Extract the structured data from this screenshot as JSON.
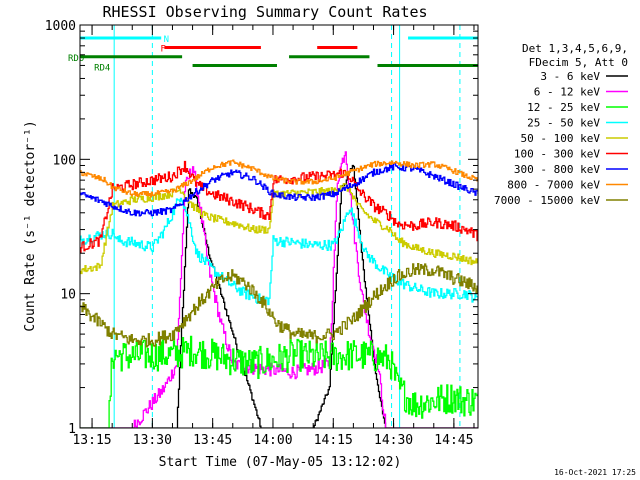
{
  "chart_data": {
    "type": "line",
    "title": "RHESSI Observing Summary Count Rates",
    "xlabel": "Start Time (07-May-05 13:12:02)",
    "ylabel": "Count Rate (s⁻¹ detector⁻¹)",
    "y_scale": "log",
    "ylim": [
      1,
      1000
    ],
    "xlim_minutes": [
      -3.0,
      96.0
    ],
    "x_ticks": [
      {
        "label": "13:15",
        "value": 0
      },
      {
        "label": "13:30",
        "value": 15
      },
      {
        "label": "13:45",
        "value": 30
      },
      {
        "label": "14:00",
        "value": 45
      },
      {
        "label": "14:15",
        "value": 60
      },
      {
        "label": "14:30",
        "value": 75
      },
      {
        "label": "14:45",
        "value": 90
      }
    ],
    "y_ticks": [
      {
        "label": "1",
        "value": 1
      },
      {
        "label": "10",
        "value": 10
      },
      {
        "label": "100",
        "value": 100
      },
      {
        "label": "1000",
        "value": 1000
      }
    ],
    "legend": {
      "placement": "right",
      "header": [
        "Det 1,3,4,5,6,9,",
        "FDecim 5, Att 0"
      ]
    },
    "footer_date": "16-Oct-2021 17:25",
    "flags": [
      {
        "label": "N",
        "color": "#00ffff",
        "segments": [
          [
            -3,
            17.2
          ],
          [
            78.6,
            96
          ]
        ],
        "level": 800
      },
      {
        "label": "F",
        "color": "#ff0000",
        "segments": [
          [
            18.0,
            42.0
          ],
          [
            56.0,
            66.0
          ]
        ],
        "level": 680
      },
      {
        "label": "RD0",
        "color": "#008000",
        "segments": [
          [
            -3,
            22.4
          ],
          [
            49.0,
            69.0
          ]
        ],
        "level": 580
      },
      {
        "label": "RD4",
        "color": "#008000",
        "segments": [
          [
            25.0,
            46.0
          ],
          [
            71.0,
            96.0
          ]
        ],
        "level": 500
      }
    ],
    "vlines": [
      {
        "x": 15.0,
        "color": "#00ffff",
        "style": "dashed"
      },
      {
        "x": 74.5,
        "color": "#00ffff",
        "style": "dashed"
      },
      {
        "x": 91.5,
        "color": "#00ffff",
        "style": "dashed"
      },
      {
        "x": 5.5,
        "color": "#00ffff",
        "style": "solid"
      },
      {
        "x": 76.5,
        "color": "#00ffff",
        "style": "solid"
      }
    ],
    "series": [
      {
        "name": "3 - 6 keV",
        "color": "#000000",
        "noise": 0.02,
        "points": [
          [
            -3,
            1
          ],
          [
            15,
            1
          ],
          [
            21,
            1
          ],
          [
            24,
            60
          ],
          [
            26,
            50
          ],
          [
            29,
            20
          ],
          [
            33,
            8
          ],
          [
            36,
            4
          ],
          [
            40,
            1.6
          ],
          [
            42,
            1
          ],
          [
            50,
            1
          ],
          [
            55,
            1
          ],
          [
            59,
            2
          ],
          [
            62,
            60
          ],
          [
            65,
            90
          ],
          [
            67,
            20
          ],
          [
            69,
            6
          ],
          [
            71,
            2
          ],
          [
            73,
            1
          ],
          [
            96,
            1
          ]
        ]
      },
      {
        "name": "6 - 12 keV",
        "color": "#ff00ff",
        "noise": 0.05,
        "points": [
          [
            -3,
            1
          ],
          [
            10,
            1
          ],
          [
            18,
            2
          ],
          [
            21,
            3
          ],
          [
            23,
            60
          ],
          [
            25,
            90
          ],
          [
            27,
            40
          ],
          [
            29,
            15
          ],
          [
            32,
            6
          ],
          [
            35,
            3
          ],
          [
            40,
            2.8
          ],
          [
            50,
            2.6
          ],
          [
            56,
            2.8
          ],
          [
            59,
            3
          ],
          [
            61,
            70
          ],
          [
            63,
            120
          ],
          [
            65,
            30
          ],
          [
            67,
            10
          ],
          [
            69,
            5
          ],
          [
            71,
            3
          ],
          [
            73,
            1
          ],
          [
            96,
            1
          ]
        ]
      },
      {
        "name": "12 - 25 keV",
        "color": "#00ff00",
        "noise": 0.12,
        "points": [
          [
            -3,
            1
          ],
          [
            4,
            1
          ],
          [
            5,
            3.5
          ],
          [
            10,
            3.4
          ],
          [
            15,
            3.5
          ],
          [
            20,
            3.5
          ],
          [
            25,
            3.8
          ],
          [
            30,
            3.5
          ],
          [
            35,
            3.2
          ],
          [
            40,
            3.0
          ],
          [
            45,
            3.2
          ],
          [
            50,
            3.5
          ],
          [
            55,
            3.4
          ],
          [
            60,
            3.4
          ],
          [
            65,
            3.5
          ],
          [
            70,
            3.4
          ],
          [
            74,
            3.2
          ],
          [
            76,
            2.0
          ],
          [
            80,
            1.5
          ],
          [
            85,
            1.6
          ],
          [
            90,
            1.7
          ],
          [
            92,
            1.6
          ],
          [
            96,
            1.6
          ]
        ]
      },
      {
        "name": "25 - 50 keV",
        "color": "#00ffff",
        "noise": 0.04,
        "points": [
          [
            -3,
            25
          ],
          [
            3,
            28
          ],
          [
            5.5,
            28
          ],
          [
            6,
            25
          ],
          [
            10,
            24
          ],
          [
            15,
            22
          ],
          [
            18,
            30
          ],
          [
            20,
            40
          ],
          [
            22,
            55
          ],
          [
            24,
            35
          ],
          [
            26,
            20
          ],
          [
            30,
            15
          ],
          [
            34,
            12
          ],
          [
            38,
            10
          ],
          [
            42,
            9
          ],
          [
            44,
            9
          ],
          [
            45,
            25
          ],
          [
            50,
            24
          ],
          [
            55,
            23
          ],
          [
            60,
            23
          ],
          [
            62,
            30
          ],
          [
            64,
            45
          ],
          [
            66,
            30
          ],
          [
            68,
            20
          ],
          [
            72,
            15
          ],
          [
            75,
            13
          ],
          [
            77,
            12
          ],
          [
            80,
            11
          ],
          [
            85,
            10
          ],
          [
            90,
            10
          ],
          [
            93,
            10
          ],
          [
            96,
            9
          ]
        ]
      },
      {
        "name": "50 - 100 keV",
        "color": "#cccc00",
        "noise": 0.03,
        "points": [
          [
            -3,
            15
          ],
          [
            2,
            16
          ],
          [
            5,
            45
          ],
          [
            10,
            50
          ],
          [
            15,
            52
          ],
          [
            19,
            55
          ],
          [
            22,
            60
          ],
          [
            25,
            45
          ],
          [
            28,
            38
          ],
          [
            32,
            35
          ],
          [
            36,
            33
          ],
          [
            40,
            30
          ],
          [
            44,
            30
          ],
          [
            45,
            55
          ],
          [
            50,
            56
          ],
          [
            55,
            57
          ],
          [
            60,
            58
          ],
          [
            62,
            65
          ],
          [
            64,
            60
          ],
          [
            66,
            45
          ],
          [
            70,
            35
          ],
          [
            74,
            30
          ],
          [
            76,
            25
          ],
          [
            80,
            22
          ],
          [
            85,
            20
          ],
          [
            90,
            19
          ],
          [
            93,
            18
          ],
          [
            96,
            17
          ]
        ]
      },
      {
        "name": "100 - 300 keV",
        "color": "#ff0000",
        "noise": 0.04,
        "points": [
          [
            -3,
            22
          ],
          [
            2,
            25
          ],
          [
            5,
            60
          ],
          [
            10,
            65
          ],
          [
            15,
            70
          ],
          [
            20,
            75
          ],
          [
            23,
            90
          ],
          [
            26,
            65
          ],
          [
            30,
            55
          ],
          [
            34,
            50
          ],
          [
            38,
            45
          ],
          [
            42,
            40
          ],
          [
            44,
            38
          ],
          [
            45,
            70
          ],
          [
            50,
            72
          ],
          [
            55,
            74
          ],
          [
            60,
            76
          ],
          [
            62,
            80
          ],
          [
            64,
            75
          ],
          [
            66,
            60
          ],
          [
            70,
            45
          ],
          [
            74,
            38
          ],
          [
            76,
            33
          ],
          [
            80,
            32
          ],
          [
            85,
            34
          ],
          [
            90,
            32
          ],
          [
            93,
            30
          ],
          [
            96,
            27
          ]
        ]
      },
      {
        "name": "300 - 800 keV",
        "color": "#0000ff",
        "noise": 0.025,
        "points": [
          [
            -3,
            55
          ],
          [
            3,
            48
          ],
          [
            5,
            45
          ],
          [
            10,
            40
          ],
          [
            15,
            40
          ],
          [
            20,
            42
          ],
          [
            25,
            55
          ],
          [
            30,
            70
          ],
          [
            35,
            80
          ],
          [
            40,
            72
          ],
          [
            45,
            55
          ],
          [
            50,
            52
          ],
          [
            55,
            52
          ],
          [
            60,
            55
          ],
          [
            65,
            65
          ],
          [
            70,
            80
          ],
          [
            75,
            88
          ],
          [
            80,
            85
          ],
          [
            85,
            75
          ],
          [
            90,
            65
          ],
          [
            93,
            60
          ],
          [
            96,
            55
          ]
        ]
      },
      {
        "name": "800 - 7000 keV",
        "color": "#ff8800",
        "noise": 0.02,
        "points": [
          [
            -3,
            80
          ],
          [
            3,
            70
          ],
          [
            5,
            62
          ],
          [
            10,
            55
          ],
          [
            15,
            55
          ],
          [
            20,
            58
          ],
          [
            25,
            70
          ],
          [
            30,
            88
          ],
          [
            35,
            95
          ],
          [
            40,
            85
          ],
          [
            45,
            72
          ],
          [
            50,
            68
          ],
          [
            55,
            68
          ],
          [
            60,
            72
          ],
          [
            65,
            82
          ],
          [
            70,
            92
          ],
          [
            75,
            95
          ],
          [
            80,
            90
          ],
          [
            85,
            92
          ],
          [
            90,
            82
          ],
          [
            93,
            75
          ],
          [
            96,
            70
          ]
        ]
      },
      {
        "name": "7000 - 15000 keV",
        "color": "#808000",
        "noise": 0.05,
        "points": [
          [
            -3,
            8
          ],
          [
            2,
            6
          ],
          [
            5,
            5
          ],
          [
            10,
            4.5
          ],
          [
            15,
            4.5
          ],
          [
            20,
            5
          ],
          [
            25,
            7.5
          ],
          [
            30,
            11
          ],
          [
            33,
            13
          ],
          [
            35,
            13.5
          ],
          [
            38,
            12
          ],
          [
            42,
            9
          ],
          [
            46,
            6
          ],
          [
            50,
            5
          ],
          [
            55,
            4.8
          ],
          [
            60,
            5
          ],
          [
            65,
            6.5
          ],
          [
            70,
            9.5
          ],
          [
            75,
            13
          ],
          [
            80,
            15
          ],
          [
            85,
            15
          ],
          [
            90,
            13
          ],
          [
            93,
            12
          ],
          [
            96,
            11
          ]
        ]
      }
    ]
  }
}
